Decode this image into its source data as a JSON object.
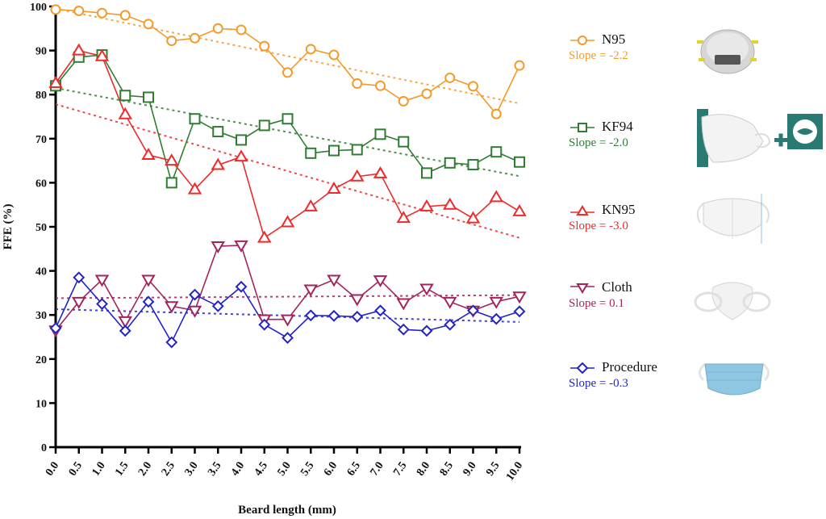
{
  "chart_data": {
    "type": "line",
    "title": "",
    "xlabel": "Beard length (mm)",
    "ylabel": "FFE (%)",
    "ylim": [
      0,
      100
    ],
    "xlim": [
      0,
      10
    ],
    "yticks": [
      0,
      10,
      20,
      30,
      40,
      50,
      60,
      70,
      80,
      90,
      100
    ],
    "x": [
      "0.0",
      "0.5",
      "1.0",
      "1.5",
      "2.0",
      "2.5",
      "3.0",
      "3.5",
      "4.0",
      "4.5",
      "5.0",
      "5.5",
      "6.0",
      "6.5",
      "7.0",
      "7.5",
      "8.0",
      "8.5",
      "9.0",
      "9.5",
      "10.0"
    ],
    "grid": false,
    "legend_position": "right",
    "series": [
      {
        "name": "N95",
        "marker": "circle",
        "color": "#f39a2b",
        "slope_label": "Slope = -2.2",
        "slope": -2.2,
        "trend": [
          99.5,
          78.0
        ],
        "values": [
          99.3,
          99.0,
          98.5,
          98.0,
          96.0,
          92.2,
          92.8,
          95.0,
          94.7,
          91.0,
          85.0,
          90.3,
          89.0,
          82.5,
          82.0,
          78.5,
          80.2,
          83.8,
          81.9,
          75.6,
          86.6
        ]
      },
      {
        "name": "KF94",
        "marker": "square",
        "color": "#2e7d32",
        "slope_label": "Slope = -2.0",
        "slope": -2.0,
        "trend": [
          81.5,
          61.5
        ],
        "values": [
          82.0,
          88.5,
          89.0,
          79.8,
          79.4,
          60.0,
          74.5,
          71.6,
          69.7,
          73.0,
          74.5,
          66.7,
          67.3,
          67.5,
          71.0,
          69.3,
          62.2,
          64.5,
          64.1,
          67.0,
          64.7
        ]
      },
      {
        "name": "KN95",
        "marker": "triangle-up",
        "color": "#ee2a2a",
        "slope_label": "Slope = -3.0",
        "slope": -3.0,
        "trend": [
          77.8,
          47.5
        ],
        "values": [
          82.6,
          90.0,
          88.7,
          75.5,
          66.3,
          65.0,
          58.5,
          64.0,
          65.9,
          47.5,
          51.0,
          54.6,
          58.6,
          61.4,
          62.1,
          52.0,
          54.6,
          55.0,
          51.9,
          56.7,
          53.5
        ]
      },
      {
        "name": "Cloth",
        "marker": "triangle-down",
        "color": "#a3245c",
        "slope_label": "Slope = 0.1",
        "slope": 0.1,
        "trend": [
          33.8,
          34.5
        ],
        "values": [
          26.5,
          33.0,
          38.0,
          28.6,
          38.0,
          32.0,
          31.0,
          45.6,
          45.8,
          29.0,
          29.0,
          35.8,
          38.0,
          33.6,
          37.9,
          32.7,
          36.0,
          33.0,
          31.0,
          33.0,
          34.2
        ]
      },
      {
        "name": "Procedure",
        "marker": "diamond",
        "color": "#2323c8",
        "slope_label": "Slope = -0.3",
        "slope": -0.3,
        "trend": [
          31.3,
          28.4
        ],
        "values": [
          27.0,
          38.5,
          32.5,
          26.4,
          33.0,
          23.8,
          34.6,
          32.0,
          36.4,
          27.8,
          24.8,
          29.9,
          29.8,
          29.6,
          31.0,
          26.7,
          26.4,
          27.8,
          31.0,
          29.1,
          30.8
        ]
      }
    ]
  },
  "legend": [
    {
      "name": "N95",
      "slope": "Slope = -2.2",
      "image": "n95-mask-image"
    },
    {
      "name": "KF94",
      "slope": "Slope = -2.0",
      "image": "kf94-mask-image"
    },
    {
      "name": "KN95",
      "slope": "Slope = -3.0",
      "image": "kn95-mask-image"
    },
    {
      "name": "Cloth",
      "slope": "Slope = 0.1",
      "image": "cloth-mask-image"
    },
    {
      "name": "Procedure",
      "slope": "Slope = -0.3",
      "image": "procedure-mask-image"
    }
  ]
}
